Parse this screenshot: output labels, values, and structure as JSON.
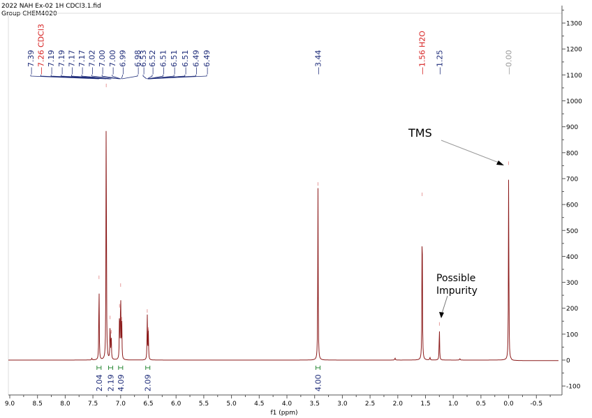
{
  "header": {
    "line1": "2022 NAH Ex-02 1H CDCl3.1.fid",
    "line2": "Group CHEM4020"
  },
  "colors": {
    "spectrum": "#8b1a1a",
    "peak_label": "#1f2d7a",
    "solvent_label": "#d62020",
    "tms_label": "#999999",
    "integral": "#2e8b3a",
    "axis": "#555555"
  },
  "annotations": {
    "tms": "TMS",
    "impurity_line1": "Possible",
    "impurity_line2": "Impurity"
  },
  "chart_data": {
    "type": "line",
    "title": "2022 NAH Ex-02 1H CDCl3.1.fid",
    "subtitle": "Group CHEM4020",
    "xlabel": "f1 (ppm)",
    "ylabel": "",
    "xlim": [
      9.0,
      -0.9
    ],
    "ylim": [
      -130,
      1360
    ],
    "x_reversed": true,
    "grid": false,
    "x_ticks": [
      "9.0",
      "8.5",
      "8.0",
      "7.5",
      "7.0",
      "6.5",
      "6.0",
      "5.5",
      "5.0",
      "4.5",
      "4.0",
      "3.5",
      "3.0",
      "2.5",
      "2.0",
      "1.5",
      "1.0",
      "0.5",
      "0.0",
      "-0.5"
    ],
    "y_ticks": [
      "1300",
      "1200",
      "1100",
      "1000",
      "900",
      "800",
      "700",
      "600",
      "500",
      "400",
      "300",
      "200",
      "100",
      "0",
      "-100"
    ],
    "peak_labels": [
      {
        "text": "7.39",
        "color": "blue"
      },
      {
        "text": "7.26 CDCl3",
        "color": "red"
      },
      {
        "text": "7.19",
        "color": "blue"
      },
      {
        "text": "7.19",
        "color": "blue"
      },
      {
        "text": "7.17",
        "color": "blue"
      },
      {
        "text": "7.17",
        "color": "blue"
      },
      {
        "text": "7.02",
        "color": "blue"
      },
      {
        "text": "7.00",
        "color": "blue"
      },
      {
        "text": "7.00",
        "color": "blue"
      },
      {
        "text": "6.99",
        "color": "blue"
      },
      {
        "text": "6.98",
        "color": "blue"
      },
      {
        "text": "6.53",
        "color": "blue"
      },
      {
        "text": "6.52",
        "color": "blue"
      },
      {
        "text": "6.51",
        "color": "blue"
      },
      {
        "text": "6.51",
        "color": "blue"
      },
      {
        "text": "6.51",
        "color": "blue"
      },
      {
        "text": "6.49",
        "color": "blue"
      },
      {
        "text": "6.49",
        "color": "blue"
      },
      {
        "text": "3.44",
        "color": "blue"
      },
      {
        "text": "1.56 H2O",
        "color": "red"
      },
      {
        "text": "1.25",
        "color": "blue"
      },
      {
        "text": "0.00",
        "color": "gray"
      }
    ],
    "peaks": [
      {
        "ppm": 7.39,
        "intensity": 310
      },
      {
        "ppm": 7.26,
        "intensity": 1050
      },
      {
        "ppm": 7.19,
        "intensity": 155
      },
      {
        "ppm": 7.17,
        "intensity": 100
      },
      {
        "ppm": 7.02,
        "intensity": 200
      },
      {
        "ppm": 7.0,
        "intensity": 280
      },
      {
        "ppm": 6.98,
        "intensity": 150
      },
      {
        "ppm": 6.52,
        "intensity": 180
      },
      {
        "ppm": 6.5,
        "intensity": 110
      },
      {
        "ppm": 3.44,
        "intensity": 670
      },
      {
        "ppm": 1.56,
        "intensity": 630
      },
      {
        "ppm": 1.25,
        "intensity": 130
      },
      {
        "ppm": 0.0,
        "intensity": 750
      }
    ],
    "integrals": [
      {
        "ppm": 7.39,
        "value": "2.04"
      },
      {
        "ppm": 7.18,
        "value": "2.19"
      },
      {
        "ppm": 7.0,
        "value": "4.09"
      },
      {
        "ppm": 6.51,
        "value": "2.09"
      },
      {
        "ppm": 3.44,
        "value": "4.00"
      }
    ],
    "annotations": [
      {
        "text": "TMS",
        "points_to_ppm": 0.0
      },
      {
        "text": "Possible Impurity",
        "points_to_ppm": 1.25
      }
    ]
  }
}
